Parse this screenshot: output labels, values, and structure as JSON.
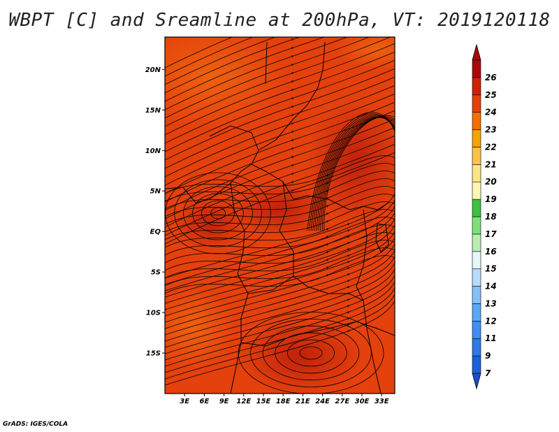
{
  "title": "WBPT [C] and Sreamline at 200hPa, VT: 2019120118",
  "credit": "GrADS: IGES/COLA",
  "map": {
    "lon_range": [
      0,
      35
    ],
    "lat_range": [
      -20,
      24
    ],
    "lon_ticks": [
      "3E",
      "6E",
      "9E",
      "12E",
      "15E",
      "18E",
      "21E",
      "24E",
      "27E",
      "30E",
      "33E"
    ],
    "lon_tick_values": [
      3,
      6,
      9,
      12,
      15,
      18,
      21,
      24,
      27,
      30,
      33
    ],
    "lat_ticks": [
      "20N",
      "15N",
      "10N",
      "5N",
      "EQ",
      "5S",
      "10S",
      "15S"
    ],
    "lat_tick_values": [
      20,
      15,
      10,
      5,
      0,
      -5,
      -10,
      -15
    ],
    "dominant_fill": "#e23e0c",
    "streamline_color": "#000000"
  },
  "colorbar": {
    "labels": [
      "7",
      "9",
      "11",
      "12",
      "13",
      "14",
      "15",
      "16",
      "17",
      "18",
      "19",
      "20",
      "21",
      "22",
      "23",
      "24",
      "25",
      "26"
    ],
    "colors": [
      "#1f5fd6",
      "#2f78e6",
      "#3f8ff2",
      "#5ea6f7",
      "#86c0fa",
      "#b6dbfc",
      "#e6f6fb",
      "#b9eeb0",
      "#80df7a",
      "#3ec043",
      "#fdf7b4",
      "#fde587",
      "#fbc24a",
      "#f7a10c",
      "#f26f06",
      "#e3410c",
      "#cc210a",
      "#a80a08"
    ],
    "arrow_low": "#1a4fc4",
    "arrow_high": "#a80a08"
  }
}
